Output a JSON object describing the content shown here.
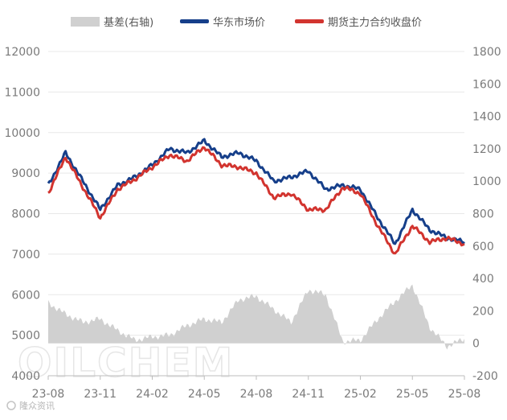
{
  "chart_data": {
    "type": "line",
    "title": "",
    "xlabel": "",
    "ylabel_left": "",
    "ylabel_right": "",
    "x_ticks": [
      "23-08",
      "23-11",
      "24-02",
      "24-05",
      "24-08",
      "24-11",
      "25-02",
      "25-05",
      "25-08"
    ],
    "ylim_left": [
      4000,
      12000
    ],
    "yticks_left": [
      4000,
      5000,
      6000,
      7000,
      8000,
      9000,
      10000,
      11000,
      12000
    ],
    "ylim_right": [
      -200,
      1800
    ],
    "yticks_right": [
      -200,
      0,
      200,
      400,
      600,
      800,
      1000,
      1200,
      1400,
      1600,
      1800
    ],
    "grid": true,
    "legend_position": "top",
    "x": [
      "2023-08",
      "2023-09",
      "2023-10",
      "2023-11",
      "2023-12",
      "2024-01",
      "2024-02",
      "2024-03",
      "2024-04",
      "2024-05",
      "2024-06",
      "2024-07",
      "2024-08",
      "2024-09",
      "2024-10",
      "2024-11",
      "2024-12",
      "2025-01",
      "2025-02",
      "2025-03",
      "2025-04",
      "2025-05",
      "2025-06",
      "2025-07",
      "2025-08"
    ],
    "series": [
      {
        "name": "基差(右轴)",
        "type": "area",
        "axis": "right",
        "color": "#d0d0d0",
        "values": [
          250,
          180,
          130,
          150,
          80,
          20,
          40,
          50,
          110,
          150,
          130,
          270,
          290,
          210,
          130,
          330,
          300,
          10,
          20,
          150,
          260,
          360,
          100,
          -20,
          30
        ]
      },
      {
        "name": "华东市场价",
        "type": "line",
        "axis": "left",
        "color": "#163f8a",
        "values": [
          8700,
          9500,
          8800,
          8100,
          8700,
          8900,
          9200,
          9600,
          9500,
          9800,
          9400,
          9500,
          9300,
          8800,
          8900,
          9050,
          8600,
          8700,
          8600,
          7900,
          7250,
          8100,
          7600,
          7400,
          7300
        ]
      },
      {
        "name": "期货主力合约收盘价",
        "type": "line",
        "axis": "left",
        "color": "#d2342f",
        "values": [
          8500,
          9400,
          8650,
          7900,
          8600,
          8850,
          9150,
          9450,
          9300,
          9650,
          9200,
          9150,
          9000,
          8400,
          8500,
          8100,
          8100,
          8650,
          8500,
          7700,
          7000,
          7700,
          7300,
          7400,
          7250
        ]
      }
    ]
  },
  "watermark": "OILCHEM",
  "logo": {
    "name": "隆众资讯",
    "icon": "oilchem-logo-icon"
  }
}
